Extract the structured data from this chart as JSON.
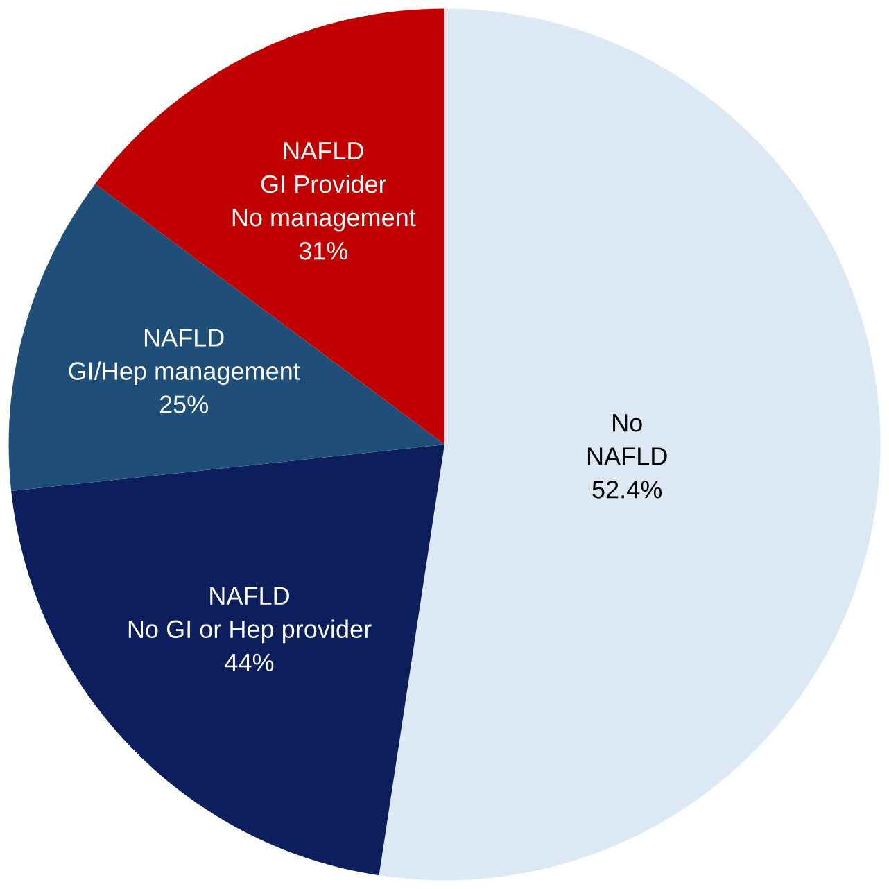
{
  "chart_data": {
    "type": "pie",
    "categories": [
      "No\nNAFLD\n52.4%",
      "NAFLD\nNo GI or Hep provider\n44%",
      "NAFLD\nGI/Hep management\n25%",
      "NAFLD\nGI Provider\nNo management\n31%"
    ],
    "values": [
      52.4,
      20.9,
      11.9,
      14.8
    ],
    "colors": [
      "#dce8f4",
      "#0c1f5c",
      "#1f4e79",
      "#c00000"
    ]
  }
}
